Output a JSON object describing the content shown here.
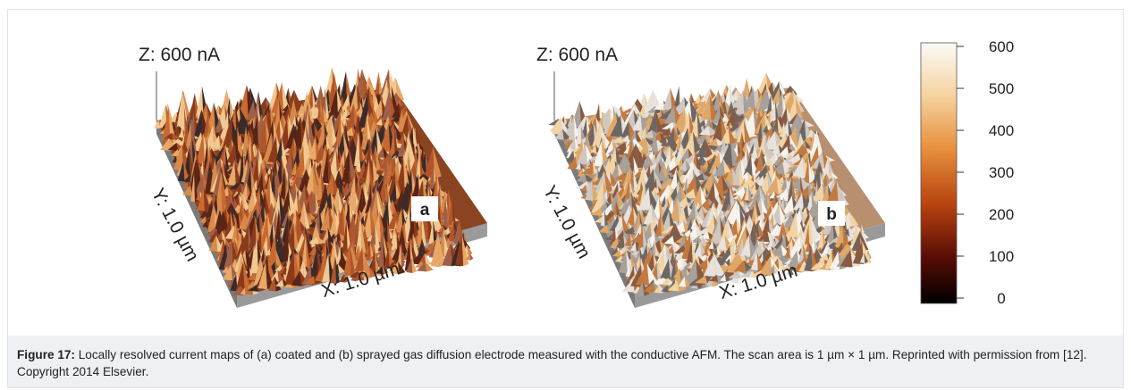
{
  "panels": [
    {
      "z_label": "Z: 600 nA",
      "y_label": "Y: 1.0 µm",
      "x_label": "X: 1.0 µm",
      "tag": "a"
    },
    {
      "z_label": "Z: 600 nA",
      "y_label": "Y: 1.0 µm",
      "x_label": "X: 1.0 µm",
      "tag": "b"
    }
  ],
  "colorbar": {
    "lim": [
      0,
      600
    ],
    "ticks": [
      0,
      100,
      200,
      300,
      400,
      500,
      600
    ]
  },
  "caption": {
    "label": "Figure 17:",
    "text": " Locally resolved current maps of (a) coated and (b) sprayed gas diffusion electrode measured with the conductive AFM. The scan area is 1 µm × 1 µm. Reprinted with permission from [12]. Copyright 2014 Elsevier."
  }
}
